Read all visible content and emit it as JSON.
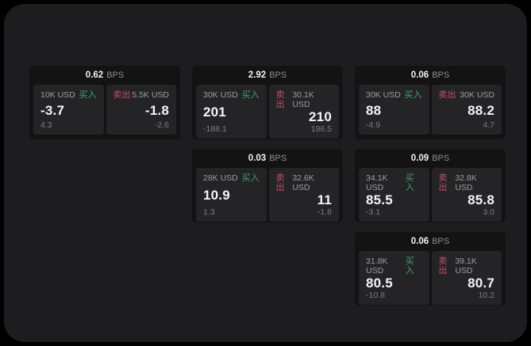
{
  "labels": {
    "buy": "买入",
    "sell": "卖出",
    "bps_unit": "BPS"
  },
  "colors": {
    "background": "#1d1d1f",
    "card": "#131314",
    "pane": "#242427",
    "buy_green": "#42a168",
    "sell_red": "#c44f6a"
  },
  "cards": [
    {
      "bps": "0.62",
      "buy": {
        "size": "10K USD",
        "price": "-3.7",
        "sub": "4.3"
      },
      "sell": {
        "size": "5.5K USD",
        "price": "-1.8",
        "sub": "-2.6"
      }
    },
    {
      "bps": "2.92",
      "buy": {
        "size": "30K USD",
        "price": "201",
        "sub": "-188.1"
      },
      "sell": {
        "size": "30.1K USD",
        "price": "210",
        "sub": "196.5"
      }
    },
    {
      "bps": "0.06",
      "buy": {
        "size": "30K USD",
        "price": "88",
        "sub": "-4.9"
      },
      "sell": {
        "size": "30K USD",
        "price": "88.2",
        "sub": "4.7"
      }
    },
    {
      "bps": "0.03",
      "buy": {
        "size": "28K USD",
        "price": "10.9",
        "sub": "1.3"
      },
      "sell": {
        "size": "32.6K USD",
        "price": "11",
        "sub": "-1.8"
      }
    },
    {
      "bps": "0.09",
      "buy": {
        "size": "34.1K USD",
        "price": "85.5",
        "sub": "-3.1"
      },
      "sell": {
        "size": "32.8K USD",
        "price": "85.8",
        "sub": "3.0"
      }
    },
    {
      "bps": "0.06",
      "buy": {
        "size": "31.8K USD",
        "price": "80.5",
        "sub": "-10.8"
      },
      "sell": {
        "size": "39.1K USD",
        "price": "80.7",
        "sub": "10.2"
      }
    }
  ]
}
